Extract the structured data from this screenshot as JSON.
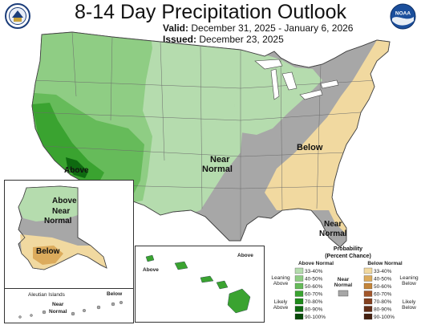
{
  "header": {
    "title": "8-14 Day Precipitation Outlook",
    "valid_label": "Valid:",
    "valid_value": "December 31, 2025 - January 6, 2026",
    "issued_label": "Issued:",
    "issued_value": "December 23, 2025"
  },
  "logos": {
    "left": "US Department of Commerce seal",
    "right_text": "NOAA"
  },
  "map_labels": {
    "conus_above": "Above",
    "conus_near_line1": "Near",
    "conus_near_line2": "Normal",
    "conus_below": "Below",
    "florida_near_line1": "Near",
    "florida_near_line2": "Normal",
    "alaska_above": "Above",
    "alaska_near_line1": "Near",
    "alaska_near_line2": "Normal",
    "alaska_below": "Below",
    "aleutian_title": "Aleutian Islands",
    "aleutian_near_line1": "Near",
    "aleutian_near_line2": "Normal",
    "aleutian_below": "Below",
    "hawaii_above_left": "Above",
    "hawaii_above_right": "Above"
  },
  "legend": {
    "title_line1": "Probability",
    "title_line2": "(Percent Chance)",
    "above_header": "Above Normal",
    "below_header": "Below Normal",
    "near_line1": "Near",
    "near_line2": "Normal",
    "leaning_above_1": "Leaning",
    "leaning_above_2": "Above",
    "likely_above_1": "Likely",
    "likely_above_2": "Above",
    "leaning_below_1": "Leaning",
    "leaning_below_2": "Below",
    "likely_below_1": "Likely",
    "likely_below_2": "Below",
    "above_bins": [
      {
        "label": "33-40%",
        "color": "#b5dcae"
      },
      {
        "label": "40-50%",
        "color": "#8fcd84"
      },
      {
        "label": "50-60%",
        "color": "#66bb5a"
      },
      {
        "label": "60-70%",
        "color": "#3aa330"
      },
      {
        "label": "70-80%",
        "color": "#1e8a1a"
      },
      {
        "label": "80-90%",
        "color": "#0e6a10"
      },
      {
        "label": "90-100%",
        "color": "#064a08"
      }
    ],
    "below_bins": [
      {
        "label": "33-40%",
        "color": "#f1d9a0"
      },
      {
        "label": "40-50%",
        "color": "#dcab5c"
      },
      {
        "label": "50-60%",
        "color": "#c4853a"
      },
      {
        "label": "60-70%",
        "color": "#a2562a"
      },
      {
        "label": "70-80%",
        "color": "#83401f"
      },
      {
        "label": "80-90%",
        "color": "#632d16"
      },
      {
        "label": "90-100%",
        "color": "#45200f"
      }
    ],
    "near_color": "#a7a7a7"
  }
}
